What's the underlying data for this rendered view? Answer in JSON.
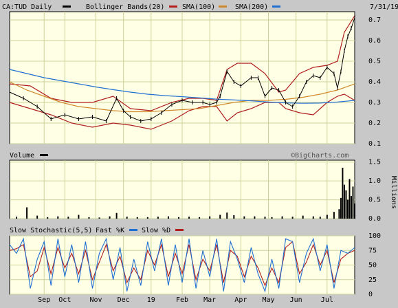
{
  "header": {
    "symbol_label": "CA:TUD Daily",
    "bollinger_label": "Bollinger Bands(20)",
    "sma100_label": "SMA(100)",
    "sma200_label": "SMA(200)",
    "date": "7/31/19"
  },
  "volume_panel": {
    "label": "Volume",
    "credit": "©BigCharts.com",
    "unit": "Millions"
  },
  "stoch_panel": {
    "label": "Slow Stochastic(5,5)",
    "fast_label": "Fast %K",
    "slow_label": "Slow %D"
  },
  "colors": {
    "panel_bg": "#ffffe6",
    "grid": "#c9d39a",
    "price": "#000000",
    "bollinger": "#b01e1e",
    "sma100": "#d08a2c",
    "sma200": "#1f6fd1",
    "fastk": "#1f6fd1",
    "slowd": "#b01e1e"
  },
  "chart_data": [
    {
      "type": "line",
      "panel": "price",
      "y_ticks": [
        "0.1",
        "0.2",
        "0.3",
        "0.4",
        "0.5",
        "0.6",
        "0.7"
      ],
      "ylim": [
        0.1,
        0.74
      ],
      "x_ticks": [
        "Sep",
        "Oct",
        "Nov",
        "Dec",
        "19",
        "Feb",
        "Mar",
        "Apr",
        "May",
        "Jun",
        "Jul"
      ],
      "x_tick_pos": [
        0.1,
        0.16,
        0.25,
        0.33,
        0.41,
        0.5,
        0.58,
        0.67,
        0.75,
        0.83,
        0.92
      ],
      "grid": true,
      "series": [
        {
          "name": "CA:TUD Daily",
          "x": [
            0,
            0.04,
            0.08,
            0.12,
            0.16,
            0.2,
            0.24,
            0.28,
            0.31,
            0.33,
            0.35,
            0.38,
            0.41,
            0.44,
            0.47,
            0.5,
            0.53,
            0.56,
            0.58,
            0.6,
            0.61,
            0.63,
            0.65,
            0.67,
            0.7,
            0.72,
            0.74,
            0.76,
            0.78,
            0.8,
            0.82,
            0.84,
            0.86,
            0.88,
            0.9,
            0.92,
            0.94,
            0.95,
            0.96,
            0.97,
            0.98,
            0.99,
            1.0
          ],
          "values": [
            0.35,
            0.32,
            0.28,
            0.22,
            0.24,
            0.22,
            0.23,
            0.21,
            0.32,
            0.26,
            0.23,
            0.21,
            0.22,
            0.25,
            0.29,
            0.31,
            0.3,
            0.3,
            0.29,
            0.3,
            0.33,
            0.45,
            0.4,
            0.38,
            0.42,
            0.42,
            0.33,
            0.37,
            0.36,
            0.3,
            0.28,
            0.33,
            0.4,
            0.43,
            0.42,
            0.47,
            0.44,
            0.37,
            0.45,
            0.55,
            0.62,
            0.66,
            0.71
          ]
        },
        {
          "name": "Bollinger Bands(20) upper",
          "x": [
            0,
            0.06,
            0.12,
            0.18,
            0.24,
            0.3,
            0.35,
            0.41,
            0.47,
            0.52,
            0.56,
            0.6,
            0.63,
            0.66,
            0.7,
            0.74,
            0.78,
            0.8,
            0.84,
            0.88,
            0.92,
            0.95,
            0.97,
            1.0
          ],
          "values": [
            0.39,
            0.38,
            0.32,
            0.3,
            0.3,
            0.33,
            0.27,
            0.26,
            0.3,
            0.32,
            0.32,
            0.31,
            0.46,
            0.49,
            0.49,
            0.44,
            0.35,
            0.36,
            0.44,
            0.47,
            0.48,
            0.5,
            0.64,
            0.72
          ]
        },
        {
          "name": "Bollinger Bands(20) lower",
          "x": [
            0,
            0.06,
            0.12,
            0.18,
            0.24,
            0.3,
            0.35,
            0.41,
            0.47,
            0.52,
            0.56,
            0.6,
            0.63,
            0.66,
            0.7,
            0.74,
            0.78,
            0.8,
            0.84,
            0.88,
            0.92,
            0.95,
            0.97,
            1.0
          ],
          "values": [
            0.3,
            0.27,
            0.24,
            0.2,
            0.18,
            0.2,
            0.19,
            0.17,
            0.21,
            0.26,
            0.28,
            0.28,
            0.21,
            0.25,
            0.27,
            0.3,
            0.3,
            0.27,
            0.25,
            0.24,
            0.3,
            0.33,
            0.34,
            0.31
          ]
        },
        {
          "name": "SMA(100)",
          "x": [
            0,
            0.05,
            0.1,
            0.15,
            0.2,
            0.25,
            0.3,
            0.35,
            0.4,
            0.45,
            0.5,
            0.55,
            0.6,
            0.65,
            0.7,
            0.75,
            0.8,
            0.85,
            0.9,
            0.95,
            1.0
          ],
          "values": [
            0.4,
            0.36,
            0.33,
            0.3,
            0.28,
            0.27,
            0.26,
            0.255,
            0.255,
            0.26,
            0.265,
            0.27,
            0.285,
            0.3,
            0.31,
            0.31,
            0.315,
            0.325,
            0.34,
            0.36,
            0.39
          ]
        },
        {
          "name": "SMA(200)",
          "x": [
            0,
            0.05,
            0.1,
            0.15,
            0.2,
            0.25,
            0.3,
            0.35,
            0.4,
            0.45,
            0.5,
            0.55,
            0.6,
            0.65,
            0.7,
            0.75,
            0.8,
            0.85,
            0.9,
            0.95,
            1.0
          ],
          "values": [
            0.46,
            0.44,
            0.42,
            0.405,
            0.39,
            0.375,
            0.362,
            0.35,
            0.34,
            0.333,
            0.328,
            0.322,
            0.316,
            0.312,
            0.308,
            0.302,
            0.298,
            0.296,
            0.297,
            0.302,
            0.31
          ]
        }
      ]
    },
    {
      "type": "bar",
      "panel": "volume",
      "y_ticks": [
        "0.0",
        "0.5",
        "1.0",
        "1.5"
      ],
      "ylim": [
        0,
        1.55
      ],
      "ylabel": "Millions",
      "x": [
        0.02,
        0.05,
        0.08,
        0.11,
        0.14,
        0.17,
        0.2,
        0.23,
        0.26,
        0.29,
        0.31,
        0.34,
        0.37,
        0.4,
        0.43,
        0.46,
        0.49,
        0.52,
        0.55,
        0.58,
        0.61,
        0.63,
        0.65,
        0.68,
        0.71,
        0.74,
        0.76,
        0.79,
        0.82,
        0.85,
        0.88,
        0.9,
        0.92,
        0.94,
        0.955,
        0.96,
        0.965,
        0.97,
        0.975,
        0.98,
        0.985,
        0.99,
        0.995,
        1.0
      ],
      "values": [
        0.05,
        0.3,
        0.08,
        0.04,
        0.06,
        0.05,
        0.1,
        0.04,
        0.03,
        0.06,
        0.15,
        0.05,
        0.04,
        0.04,
        0.05,
        0.06,
        0.04,
        0.05,
        0.04,
        0.06,
        0.1,
        0.16,
        0.09,
        0.06,
        0.06,
        0.05,
        0.04,
        0.06,
        0.05,
        0.08,
        0.06,
        0.05,
        0.1,
        0.18,
        0.25,
        0.55,
        1.35,
        0.9,
        0.75,
        0.5,
        1.05,
        0.6,
        0.85,
        0.4
      ]
    },
    {
      "type": "line",
      "panel": "stochastic",
      "y_ticks": [
        "0",
        "25",
        "50",
        "75",
        "100"
      ],
      "ylim": [
        0,
        100
      ],
      "series": [
        {
          "name": "Fast %K",
          "x": [
            0,
            0.02,
            0.04,
            0.06,
            0.08,
            0.1,
            0.12,
            0.14,
            0.16,
            0.18,
            0.2,
            0.22,
            0.24,
            0.26,
            0.28,
            0.3,
            0.32,
            0.34,
            0.36,
            0.38,
            0.4,
            0.42,
            0.44,
            0.46,
            0.48,
            0.5,
            0.52,
            0.54,
            0.56,
            0.58,
            0.6,
            0.62,
            0.64,
            0.66,
            0.68,
            0.7,
            0.72,
            0.74,
            0.76,
            0.78,
            0.8,
            0.82,
            0.84,
            0.86,
            0.88,
            0.9,
            0.92,
            0.94,
            0.96,
            0.98,
            1.0
          ],
          "values": [
            85,
            70,
            95,
            10,
            60,
            90,
            15,
            95,
            30,
            85,
            20,
            90,
            10,
            70,
            95,
            25,
            80,
            5,
            60,
            15,
            90,
            40,
            95,
            15,
            85,
            20,
            95,
            10,
            75,
            30,
            95,
            5,
            90,
            60,
            20,
            80,
            35,
            5,
            60,
            10,
            95,
            90,
            20,
            70,
            95,
            40,
            85,
            10,
            75,
            70,
            80
          ]
        },
        {
          "name": "Slow %D",
          "x": [
            0,
            0.02,
            0.04,
            0.06,
            0.08,
            0.1,
            0.12,
            0.14,
            0.16,
            0.18,
            0.2,
            0.22,
            0.24,
            0.26,
            0.28,
            0.3,
            0.32,
            0.34,
            0.36,
            0.38,
            0.4,
            0.42,
            0.44,
            0.46,
            0.48,
            0.5,
            0.52,
            0.54,
            0.56,
            0.58,
            0.6,
            0.62,
            0.64,
            0.66,
            0.68,
            0.7,
            0.72,
            0.74,
            0.76,
            0.78,
            0.8,
            0.82,
            0.84,
            0.86,
            0.88,
            0.9,
            0.92,
            0.94,
            0.96,
            0.98,
            1.0
          ],
          "values": [
            75,
            78,
            85,
            30,
            40,
            80,
            35,
            80,
            45,
            70,
            35,
            75,
            25,
            55,
            85,
            40,
            65,
            20,
            45,
            25,
            75,
            50,
            85,
            30,
            70,
            35,
            85,
            25,
            60,
            40,
            85,
            20,
            75,
            65,
            30,
            65,
            45,
            15,
            45,
            20,
            80,
            90,
            35,
            55,
            85,
            50,
            75,
            20,
            60,
            70,
            75
          ]
        }
      ]
    }
  ]
}
